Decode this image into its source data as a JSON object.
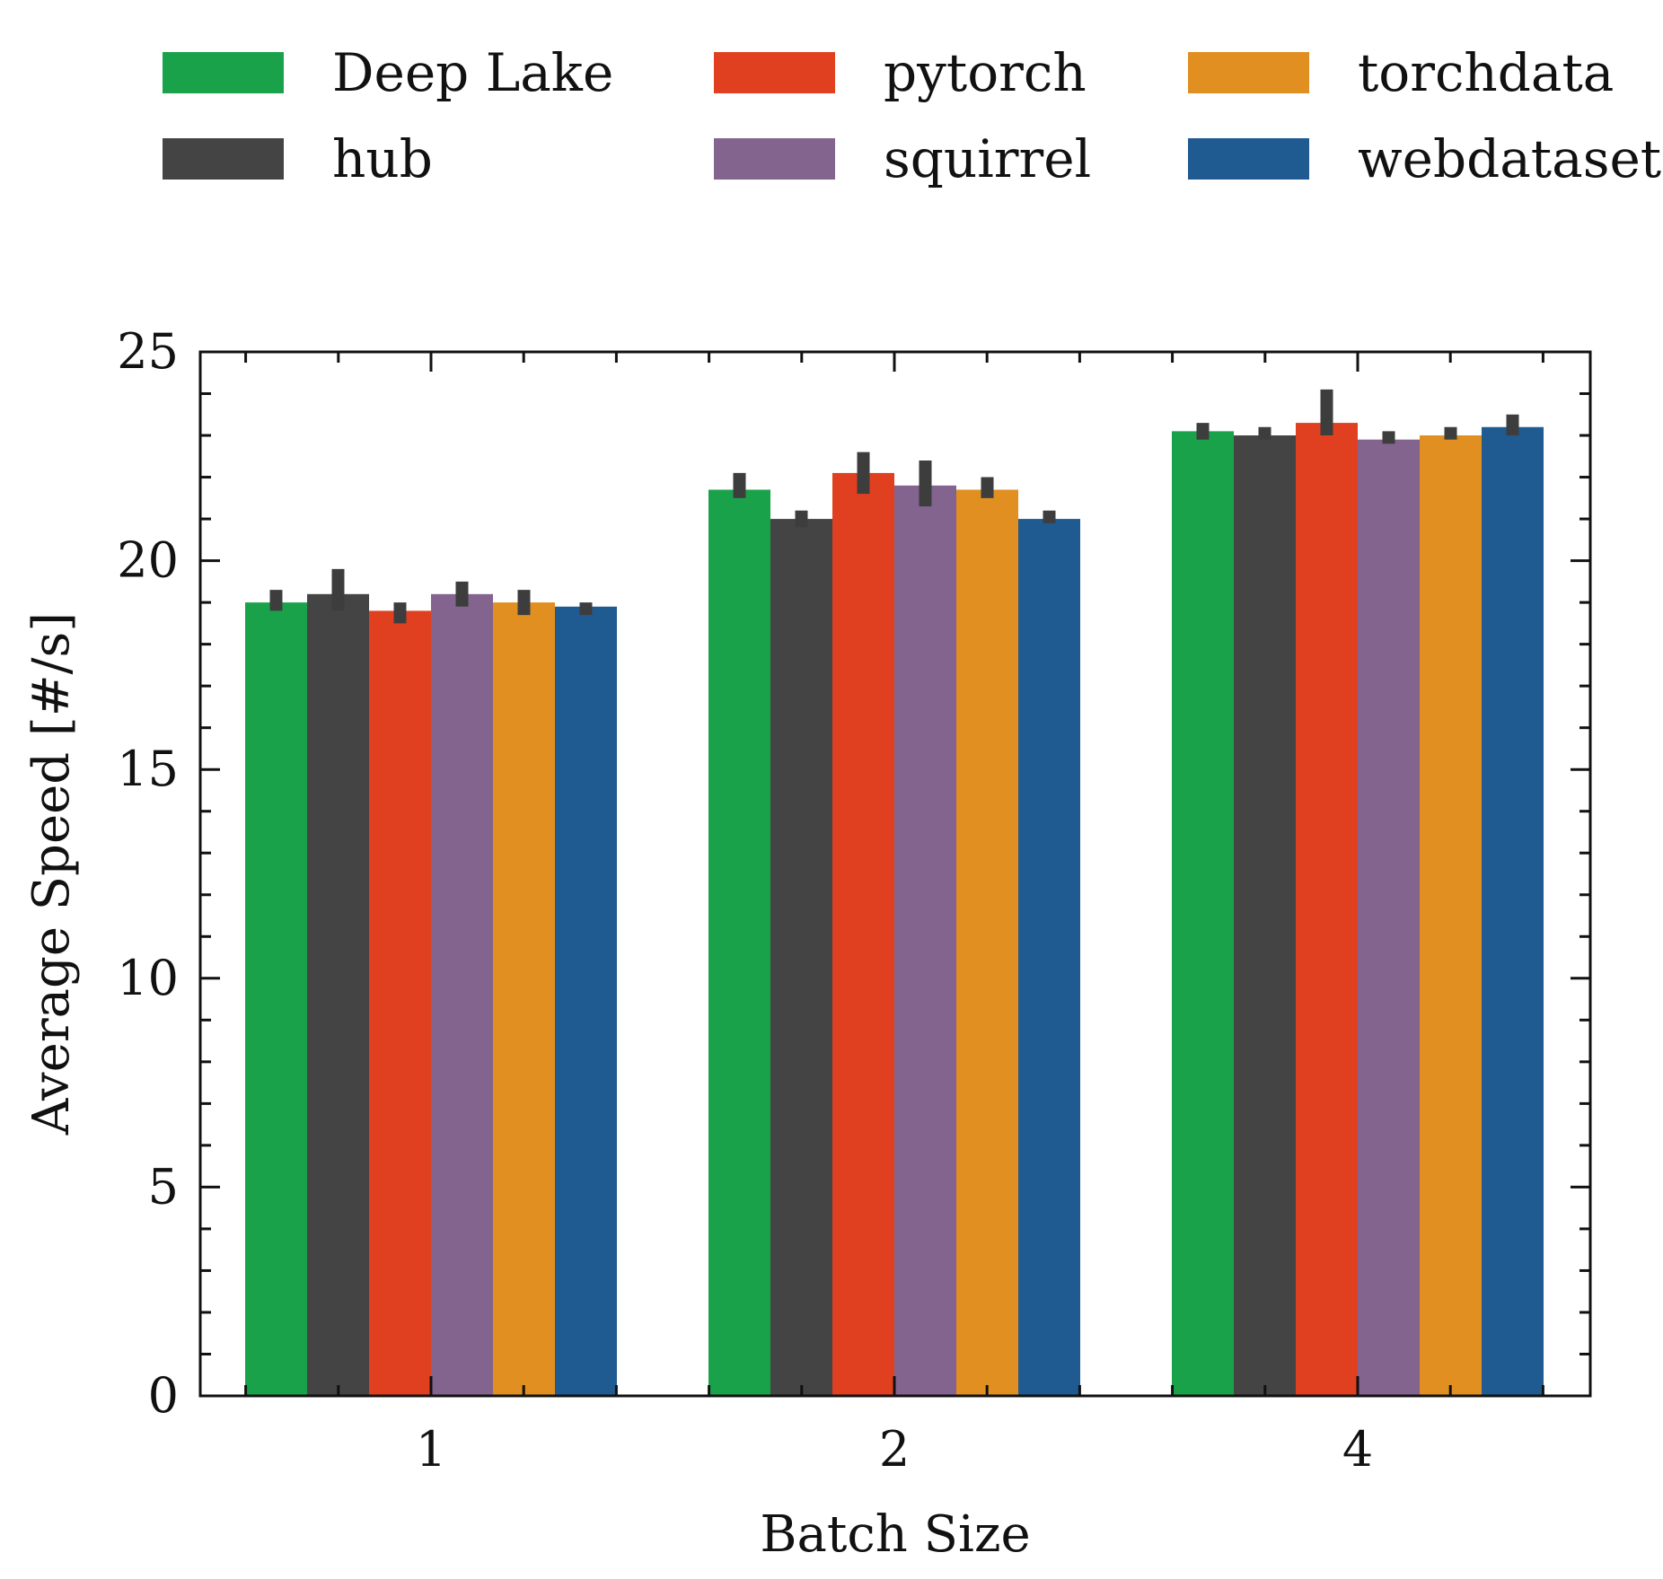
{
  "chart_data": {
    "type": "bar",
    "categories": [
      "1",
      "2",
      "4"
    ],
    "xlabel": "Batch Size",
    "ylabel": "Average Speed [#/s]",
    "ylim": [
      0,
      25
    ],
    "yticks": [
      "0",
      "5",
      "10",
      "15",
      "20",
      "25"
    ],
    "grid": false,
    "legend_position": "top",
    "error_bars": true,
    "series": [
      {
        "name": "Deep Lake",
        "color": "#1aa24b",
        "values": [
          19.0,
          21.7,
          23.1
        ],
        "error_low": [
          18.8,
          21.5,
          22.9
        ],
        "error_high": [
          19.3,
          22.1,
          23.3
        ]
      },
      {
        "name": "hub",
        "color": "#444444",
        "values": [
          19.2,
          21.0,
          23.0
        ],
        "error_low": [
          18.8,
          20.8,
          22.9
        ],
        "error_high": [
          19.8,
          21.2,
          23.2
        ]
      },
      {
        "name": "pytorch",
        "color": "#e04020",
        "values": [
          18.8,
          22.1,
          23.3
        ],
        "error_low": [
          18.5,
          21.6,
          23.0
        ],
        "error_high": [
          19.0,
          22.6,
          24.1
        ]
      },
      {
        "name": "squirrel",
        "color": "#83648f",
        "values": [
          19.2,
          21.8,
          22.9
        ],
        "error_low": [
          18.9,
          21.3,
          22.8
        ],
        "error_high": [
          19.5,
          22.4,
          23.1
        ]
      },
      {
        "name": "torchdata",
        "color": "#e08f20",
        "values": [
          19.0,
          21.7,
          23.0
        ],
        "error_low": [
          18.7,
          21.5,
          22.9
        ],
        "error_high": [
          19.3,
          22.0,
          23.2
        ]
      },
      {
        "name": "webdataset",
        "color": "#1f5b91",
        "values": [
          18.9,
          21.0,
          23.2
        ],
        "error_low": [
          18.7,
          20.9,
          23.0
        ],
        "error_high": [
          19.0,
          21.2,
          23.5
        ]
      }
    ]
  }
}
